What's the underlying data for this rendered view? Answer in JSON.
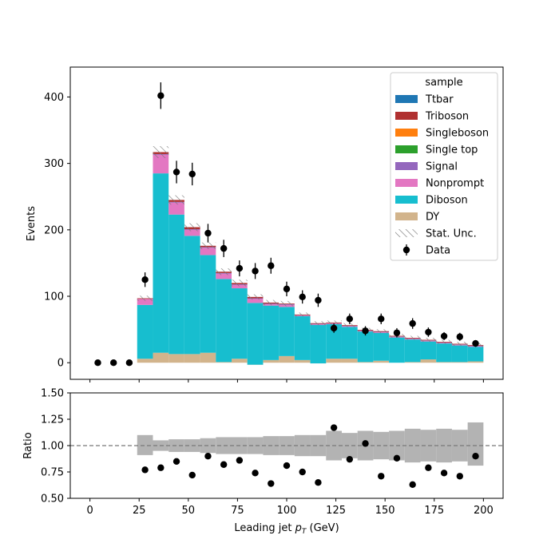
{
  "chart_data": {
    "type": "bar",
    "subtype": "stacked-histogram-with-ratio-panel",
    "xlabel_main": "Leading jet ",
    "xlabel_sym": "p",
    "xlabel_sub": "T",
    "xlabel_unit": " (GeV)",
    "ylabel": "Events",
    "ratio_ylabel": "Ratio",
    "xlim": [
      -10,
      210
    ],
    "ylim": [
      -25,
      445
    ],
    "ratio_ylim": [
      0.5,
      1.5
    ],
    "xticks": [
      0,
      25,
      50,
      75,
      100,
      125,
      150,
      175,
      200
    ],
    "yticks": [
      0,
      100,
      200,
      300,
      400
    ],
    "ratio_yticks": [
      "0.50",
      "0.75",
      "1.00",
      "1.25",
      "1.50"
    ],
    "bin_edges": [
      0,
      8,
      16,
      24,
      32,
      40,
      48,
      56,
      64,
      72,
      80,
      88,
      96,
      104,
      112,
      120,
      128,
      136,
      144,
      152,
      160,
      168,
      176,
      184,
      192,
      200
    ],
    "legend": {
      "title": "sample",
      "placement": "top-right",
      "entries": [
        {
          "label": "Ttbar",
          "color": "#1f77b4",
          "kind": "patch"
        },
        {
          "label": "Triboson",
          "color": "#b03030",
          "kind": "patch"
        },
        {
          "label": "Singleboson",
          "color": "#ff7f0e",
          "kind": "patch"
        },
        {
          "label": "Single top",
          "color": "#2ca02c",
          "kind": "patch"
        },
        {
          "label": "Signal",
          "color": "#9467bd",
          "kind": "patch"
        },
        {
          "label": "Nonprompt",
          "color": "#e377c2",
          "kind": "patch"
        },
        {
          "label": "Diboson",
          "color": "#17becf",
          "kind": "patch"
        },
        {
          "label": "DY",
          "color": "#d2b48c",
          "kind": "patch"
        },
        {
          "label": "Stat. Unc.",
          "color": "#888888",
          "kind": "hatch"
        },
        {
          "label": "Data",
          "color": "#000000",
          "kind": "errorbar"
        }
      ]
    },
    "series": [
      {
        "name": "DY",
        "color": "#d2b48c",
        "values": [
          0,
          0,
          0,
          6,
          15,
          13,
          13,
          15,
          1,
          6,
          -3,
          4,
          10,
          4,
          -1,
          6,
          6,
          1,
          3,
          0,
          1,
          5,
          1,
          1,
          2
        ]
      },
      {
        "name": "Diboson",
        "color": "#17becf",
        "values": [
          0,
          0,
          0,
          81,
          270,
          210,
          178,
          147,
          125,
          106,
          93,
          82,
          74,
          66,
          58,
          52,
          48,
          46,
          42,
          38,
          34,
          27,
          28,
          25,
          22
        ]
      },
      {
        "name": "Nonprompt",
        "color": "#e377c2",
        "values": [
          0,
          0,
          0,
          9,
          28,
          18,
          9,
          11,
          8,
          5,
          6,
          2,
          3,
          1,
          1,
          1,
          1,
          1,
          1,
          1,
          1,
          1,
          1,
          1,
          1
        ]
      },
      {
        "name": "Signal",
        "color": "#9467bd",
        "values": [
          0,
          0,
          0,
          0,
          1,
          1,
          1,
          1,
          1,
          1,
          1,
          1,
          1,
          0.5,
          0.5,
          0.5,
          0.5,
          0.5,
          0.5,
          0.5,
          0.5,
          0.5,
          0.5,
          0.5,
          0.5
        ]
      },
      {
        "name": "Single top",
        "color": "#2ca02c",
        "values": [
          0,
          0,
          0,
          0,
          0,
          0,
          0,
          0,
          0,
          0,
          0,
          0,
          0,
          0,
          0,
          0,
          0,
          0,
          0,
          0,
          0,
          0,
          0,
          0,
          0
        ]
      },
      {
        "name": "Singleboson",
        "color": "#ff7f0e",
        "values": [
          0,
          0,
          0,
          0,
          0,
          0,
          0,
          0,
          0,
          0,
          0,
          0,
          0,
          0,
          0,
          0,
          0,
          0,
          0,
          0,
          0,
          0,
          0,
          0,
          0
        ]
      },
      {
        "name": "Triboson",
        "color": "#b03030",
        "values": [
          0,
          0,
          0,
          1,
          3,
          3,
          3,
          2,
          2,
          2,
          2,
          1.5,
          1,
          1,
          1,
          1,
          1,
          1,
          1,
          1,
          1,
          1,
          1,
          1,
          1
        ]
      },
      {
        "name": "Ttbar",
        "color": "#1f77b4",
        "values": [
          0,
          0,
          0,
          0,
          0,
          0,
          0,
          0,
          0,
          0,
          0,
          0,
          0,
          0,
          0,
          0,
          0,
          0,
          0,
          0,
          0,
          0,
          0,
          0,
          0
        ]
      }
    ],
    "stat_unc": [
      0,
      0,
      0,
      4,
      9,
      7,
      6,
      5,
      5,
      5,
      4,
      4,
      4,
      3,
      3,
      3,
      3,
      3,
      3,
      3,
      3,
      3,
      3,
      3,
      3
    ],
    "data": {
      "x": [
        4,
        12,
        20,
        28,
        36,
        44,
        52,
        60,
        68,
        76,
        84,
        92,
        100,
        108,
        116,
        124,
        132,
        140,
        148,
        156,
        164,
        172,
        180,
        188,
        196
      ],
      "y": [
        0,
        0,
        0,
        125,
        402,
        287,
        284,
        195,
        172,
        142,
        138,
        146,
        111,
        99,
        94,
        52,
        66,
        48,
        66,
        45,
        59,
        46,
        40,
        39,
        29
      ],
      "err": [
        0,
        0,
        0,
        11,
        20,
        17,
        17,
        14,
        13,
        12,
        12,
        12,
        11,
        10,
        10,
        7,
        8,
        7,
        8,
        7,
        8,
        7,
        6,
        6,
        5
      ]
    },
    "ratio": {
      "x": [
        28,
        36,
        44,
        52,
        60,
        68,
        76,
        84,
        92,
        100,
        108,
        116,
        124,
        132,
        140,
        148,
        156,
        164,
        172,
        180,
        188,
        196
      ],
      "y": [
        0.77,
        0.79,
        0.85,
        0.72,
        0.9,
        0.82,
        0.86,
        0.74,
        0.64,
        0.81,
        0.75,
        0.65,
        1.17,
        0.87,
        1.02,
        0.71,
        0.88,
        0.63,
        0.79,
        0.74,
        0.71,
        0.9
      ],
      "unc_band": [
        [
          24,
          32,
          0.91,
          1.1
        ],
        [
          32,
          40,
          0.95,
          1.05
        ],
        [
          40,
          48,
          0.94,
          1.06
        ],
        [
          48,
          56,
          0.94,
          1.06
        ],
        [
          56,
          64,
          0.93,
          1.07
        ],
        [
          64,
          72,
          0.92,
          1.08
        ],
        [
          72,
          80,
          0.92,
          1.08
        ],
        [
          80,
          88,
          0.92,
          1.08
        ],
        [
          88,
          96,
          0.91,
          1.09
        ],
        [
          96,
          104,
          0.91,
          1.09
        ],
        [
          104,
          112,
          0.9,
          1.1
        ],
        [
          112,
          120,
          0.9,
          1.1
        ],
        [
          120,
          128,
          0.86,
          1.14
        ],
        [
          128,
          136,
          0.88,
          1.12
        ],
        [
          136,
          144,
          0.86,
          1.14
        ],
        [
          144,
          152,
          0.87,
          1.13
        ],
        [
          152,
          160,
          0.86,
          1.14
        ],
        [
          160,
          168,
          0.84,
          1.16
        ],
        [
          168,
          176,
          0.85,
          1.15
        ],
        [
          176,
          184,
          0.84,
          1.16
        ],
        [
          184,
          192,
          0.85,
          1.15
        ],
        [
          192,
          200,
          0.81,
          1.22
        ]
      ],
      "reference_line": 1.0
    }
  }
}
